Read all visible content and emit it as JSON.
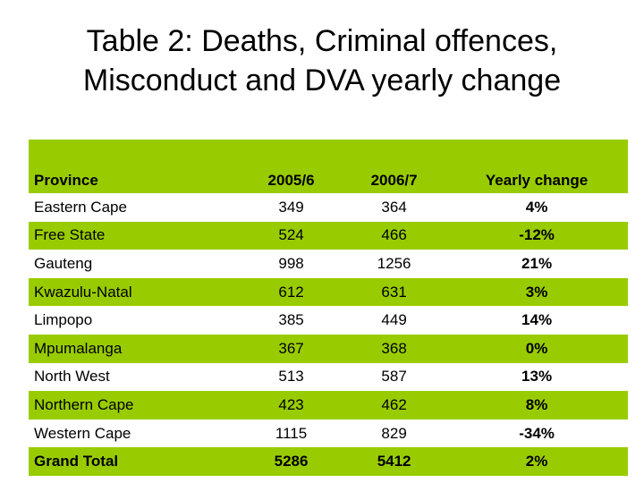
{
  "title_line1": "Table 2: Deaths, Criminal offences,",
  "title_line2": "Misconduct and DVA yearly change",
  "colors": {
    "header_green": "#99cc00",
    "row_green": "#99cc00"
  },
  "table": {
    "headers": [
      "Province",
      "2005/6",
      "2006/7",
      "Yearly change"
    ],
    "rows": [
      [
        "Eastern Cape",
        "349",
        "364",
        "4%"
      ],
      [
        "Free State",
        "524",
        "466",
        "-12%"
      ],
      [
        "Gauteng",
        "998",
        "1256",
        "21%"
      ],
      [
        "Kwazulu-Natal",
        "612",
        "631",
        "3%"
      ],
      [
        "Limpopo",
        "385",
        "449",
        "14%"
      ],
      [
        "Mpumalanga",
        "367",
        "368",
        "0%"
      ],
      [
        "North West",
        "513",
        "587",
        "13%"
      ],
      [
        "Northern Cape",
        "423",
        "462",
        "8%"
      ],
      [
        "Western Cape",
        "1115",
        "829",
        "-34%"
      ],
      [
        "Grand Total",
        "5286",
        "5412",
        "2%"
      ]
    ]
  }
}
